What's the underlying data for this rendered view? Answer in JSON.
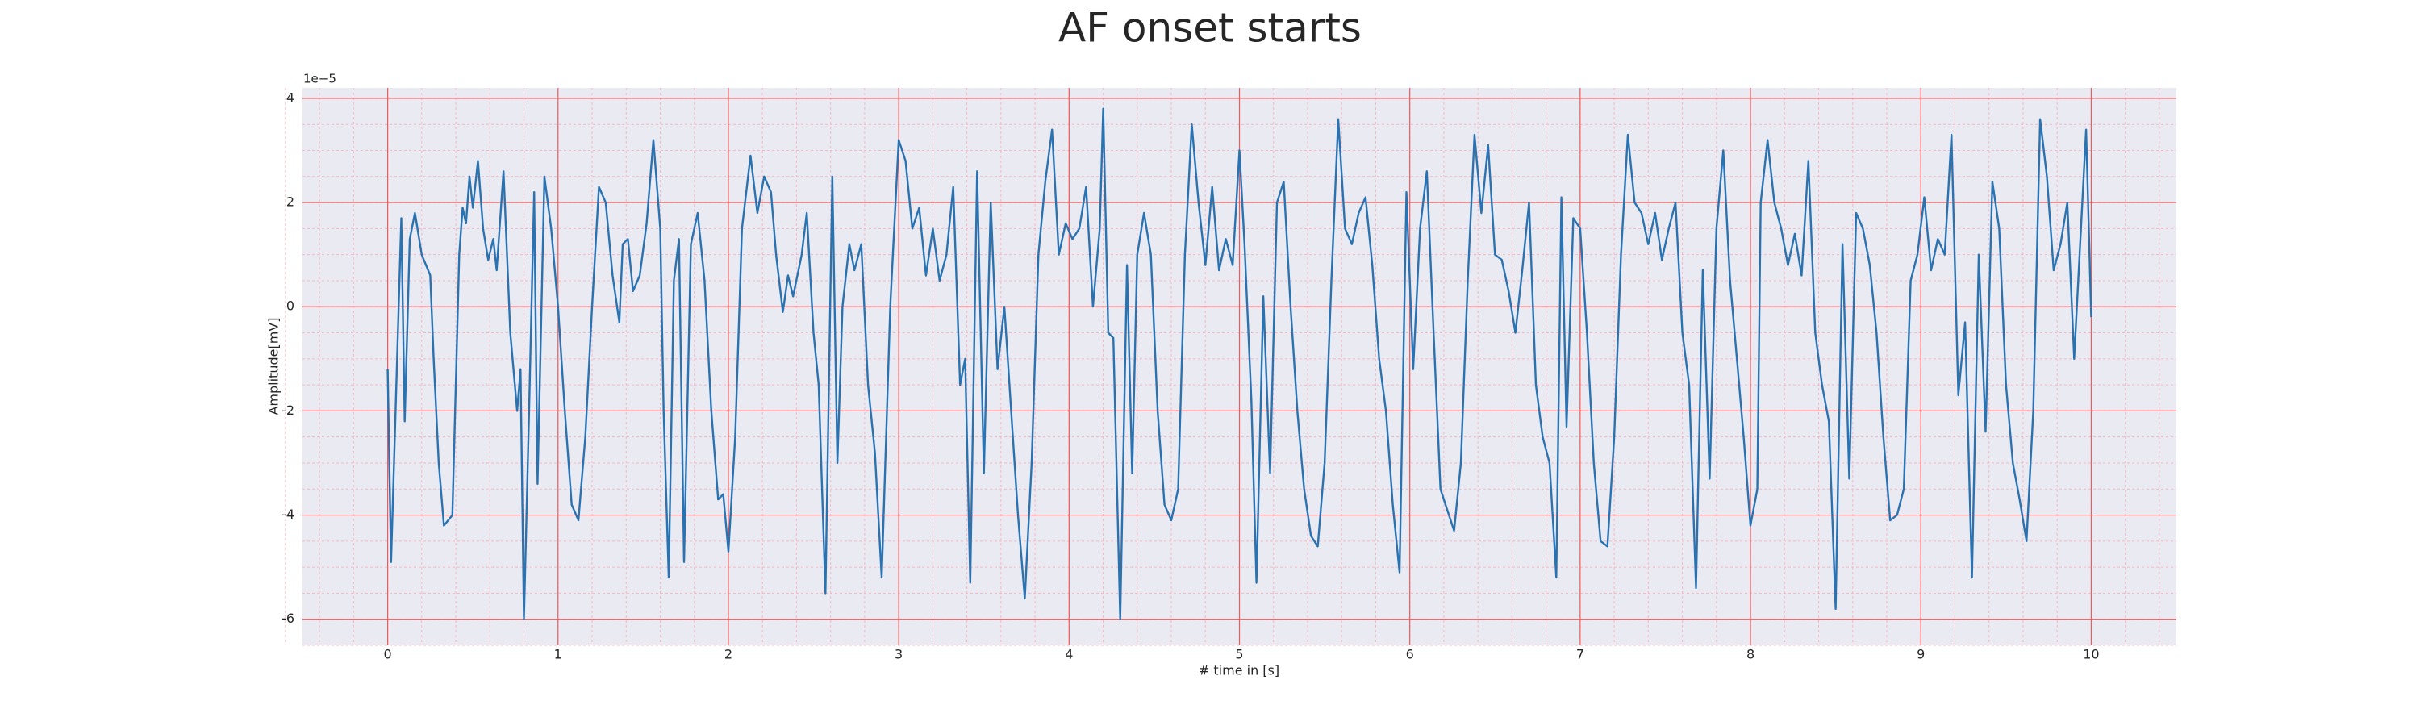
{
  "chart_data": {
    "type": "line",
    "title": "AF onset starts",
    "x_label": "# time in [s]",
    "y_label": "Amplitude[mV]",
    "y_offset_label": "1e−5",
    "xlim": [
      -0.5,
      10.5
    ],
    "ylim": [
      -6.5,
      4.2
    ],
    "xticks": [
      0,
      1,
      2,
      3,
      4,
      5,
      6,
      7,
      8,
      9,
      10
    ],
    "yticks": [
      -6,
      -4,
      -2,
      0,
      2,
      4
    ],
    "grid": true,
    "minor_grid": true,
    "series": [
      {
        "color": "#2a72b0",
        "x": [
          0,
          0.02,
          0.08,
          0.1,
          0.13,
          0.16,
          0.2,
          0.25,
          0.27,
          0.3,
          0.33,
          0.38,
          0.42,
          0.44,
          0.46,
          0.48,
          0.5,
          0.53,
          0.56,
          0.59,
          0.62,
          0.64,
          0.68,
          0.72,
          0.76,
          0.78,
          0.8,
          0.83,
          0.86,
          0.88,
          0.92,
          0.96,
          1.0,
          1.04,
          1.08,
          1.12,
          1.16,
          1.2,
          1.24,
          1.28,
          1.32,
          1.36,
          1.38,
          1.41,
          1.44,
          1.48,
          1.52,
          1.56,
          1.6,
          1.62,
          1.65,
          1.68,
          1.71,
          1.74,
          1.78,
          1.82,
          1.86,
          1.9,
          1.94,
          1.97,
          2.0,
          2.04,
          2.08,
          2.13,
          2.17,
          2.21,
          2.25,
          2.28,
          2.32,
          2.35,
          2.38,
          2.43,
          2.46,
          2.5,
          2.53,
          2.57,
          2.61,
          2.64,
          2.67,
          2.71,
          2.74,
          2.78,
          2.82,
          2.86,
          2.9,
          2.95,
          3.0,
          3.04,
          3.08,
          3.12,
          3.16,
          3.2,
          3.24,
          3.28,
          3.32,
          3.36,
          3.39,
          3.42,
          3.46,
          3.5,
          3.54,
          3.58,
          3.62,
          3.66,
          3.7,
          3.74,
          3.78,
          3.82,
          3.86,
          3.9,
          3.94,
          3.98,
          4.02,
          4.06,
          4.1,
          4.14,
          4.18,
          4.2,
          4.23,
          4.26,
          4.3,
          4.34,
          4.37,
          4.4,
          4.44,
          4.48,
          4.52,
          4.56,
          4.6,
          4.64,
          4.68,
          4.72,
          4.76,
          4.8,
          4.84,
          4.88,
          4.92,
          4.96,
          5.0,
          5.03,
          5.07,
          5.1,
          5.14,
          5.18,
          5.22,
          5.26,
          5.3,
          5.34,
          5.38,
          5.42,
          5.46,
          5.5,
          5.54,
          5.58,
          5.62,
          5.66,
          5.7,
          5.74,
          5.78,
          5.82,
          5.86,
          5.9,
          5.94,
          5.98,
          6.02,
          6.06,
          6.1,
          6.14,
          6.18,
          6.22,
          6.26,
          6.3,
          6.34,
          6.38,
          6.42,
          6.46,
          6.5,
          6.54,
          6.58,
          6.62,
          6.66,
          6.7,
          6.74,
          6.78,
          6.82,
          6.86,
          6.89,
          6.92,
          6.96,
          7.0,
          7.04,
          7.08,
          7.12,
          7.16,
          7.2,
          7.24,
          7.28,
          7.32,
          7.36,
          7.4,
          7.44,
          7.48,
          7.52,
          7.56,
          7.6,
          7.64,
          7.68,
          7.72,
          7.76,
          7.8,
          7.84,
          7.88,
          7.92,
          7.96,
          8.0,
          8.04,
          8.06,
          8.1,
          8.14,
          8.18,
          8.22,
          8.26,
          8.3,
          8.34,
          8.38,
          8.42,
          8.46,
          8.5,
          8.54,
          8.58,
          8.62,
          8.66,
          8.7,
          8.74,
          8.78,
          8.82,
          8.86,
          8.9,
          8.94,
          8.98,
          9.02,
          9.06,
          9.1,
          9.14,
          9.18,
          9.22,
          9.26,
          9.3,
          9.34,
          9.38,
          9.42,
          9.46,
          9.5,
          9.54,
          9.58,
          9.62,
          9.66,
          9.7,
          9.74,
          9.78,
          9.82,
          9.86,
          9.9,
          9.94,
          9.97,
          10.0
        ],
        "values": [
          -1.2,
          -4.9,
          1.7,
          -2.2,
          1.3,
          1.8,
          1.0,
          0.6,
          -1.0,
          -3.0,
          -4.2,
          -4.0,
          1.0,
          1.9,
          1.6,
          2.5,
          1.9,
          2.8,
          1.5,
          0.9,
          1.3,
          0.7,
          2.6,
          -0.5,
          -2.0,
          -1.2,
          -6.0,
          -2.0,
          2.2,
          -3.4,
          2.5,
          1.5,
          0.0,
          -2.0,
          -3.8,
          -4.1,
          -2.5,
          0.0,
          2.3,
          2.0,
          0.6,
          -0.3,
          1.2,
          1.3,
          0.3,
          0.6,
          1.6,
          3.2,
          1.5,
          -2.0,
          -5.2,
          0.5,
          1.3,
          -4.9,
          1.2,
          1.8,
          0.5,
          -2.0,
          -3.7,
          -3.6,
          -4.7,
          -2.5,
          1.5,
          2.9,
          1.8,
          2.5,
          2.2,
          1.0,
          -0.1,
          0.6,
          0.2,
          1.0,
          1.8,
          -0.5,
          -1.5,
          -5.5,
          2.5,
          -3.0,
          0.0,
          1.2,
          0.7,
          1.2,
          -1.5,
          -2.8,
          -5.2,
          0.0,
          3.2,
          2.8,
          1.5,
          1.9,
          0.6,
          1.5,
          0.5,
          1.0,
          2.3,
          -1.5,
          -1.0,
          -5.3,
          2.6,
          -3.2,
          2.0,
          -1.2,
          0.0,
          -2.0,
          -4.0,
          -5.6,
          -3.0,
          1.0,
          2.4,
          3.4,
          1.0,
          1.6,
          1.3,
          1.5,
          2.3,
          0.0,
          1.5,
          3.8,
          -0.5,
          -0.6,
          -6.0,
          0.8,
          -3.2,
          1.0,
          1.8,
          1.0,
          -2.0,
          -3.8,
          -4.1,
          -3.5,
          1.0,
          3.5,
          2.0,
          0.8,
          2.3,
          0.7,
          1.3,
          0.8,
          3.0,
          1.2,
          -1.8,
          -5.3,
          0.2,
          -3.2,
          2.0,
          2.4,
          0.0,
          -2.0,
          -3.5,
          -4.4,
          -4.6,
          -3.0,
          0.5,
          3.6,
          1.5,
          1.2,
          1.8,
          2.1,
          0.8,
          -1.0,
          -2.0,
          -3.8,
          -5.1,
          2.2,
          -1.2,
          1.5,
          2.6,
          -0.5,
          -3.5,
          -3.9,
          -4.3,
          -3.0,
          0.5,
          3.3,
          1.8,
          3.1,
          1.0,
          0.9,
          0.3,
          -0.5,
          0.7,
          2.0,
          -1.5,
          -2.5,
          -3.0,
          -5.2,
          2.1,
          -2.3,
          1.7,
          1.5,
          -0.5,
          -3.0,
          -4.5,
          -4.6,
          -2.5,
          1.0,
          3.3,
          2.0,
          1.8,
          1.2,
          1.8,
          0.9,
          1.5,
          2.0,
          -0.5,
          -1.5,
          -5.4,
          0.7,
          -3.3,
          1.5,
          3.0,
          0.5,
          -1.0,
          -2.5,
          -4.2,
          -3.5,
          2.0,
          3.2,
          2.0,
          1.5,
          0.8,
          1.4,
          0.6,
          2.8,
          -0.5,
          -1.5,
          -2.2,
          -5.8,
          1.2,
          -3.3,
          1.8,
          1.5,
          0.8,
          -0.5,
          -2.5,
          -4.1,
          -4.0,
          -3.5,
          0.5,
          1.0,
          2.1,
          0.7,
          1.3,
          1.0,
          3.3,
          -1.7,
          -0.3,
          -5.2,
          1.0,
          -2.4,
          2.4,
          1.5,
          -1.5,
          -3.0,
          -3.7,
          -4.5,
          -2.0,
          3.6,
          2.5,
          0.7,
          1.2,
          2.0,
          -1.0,
          1.5,
          3.4,
          -0.2
        ]
      }
    ]
  }
}
